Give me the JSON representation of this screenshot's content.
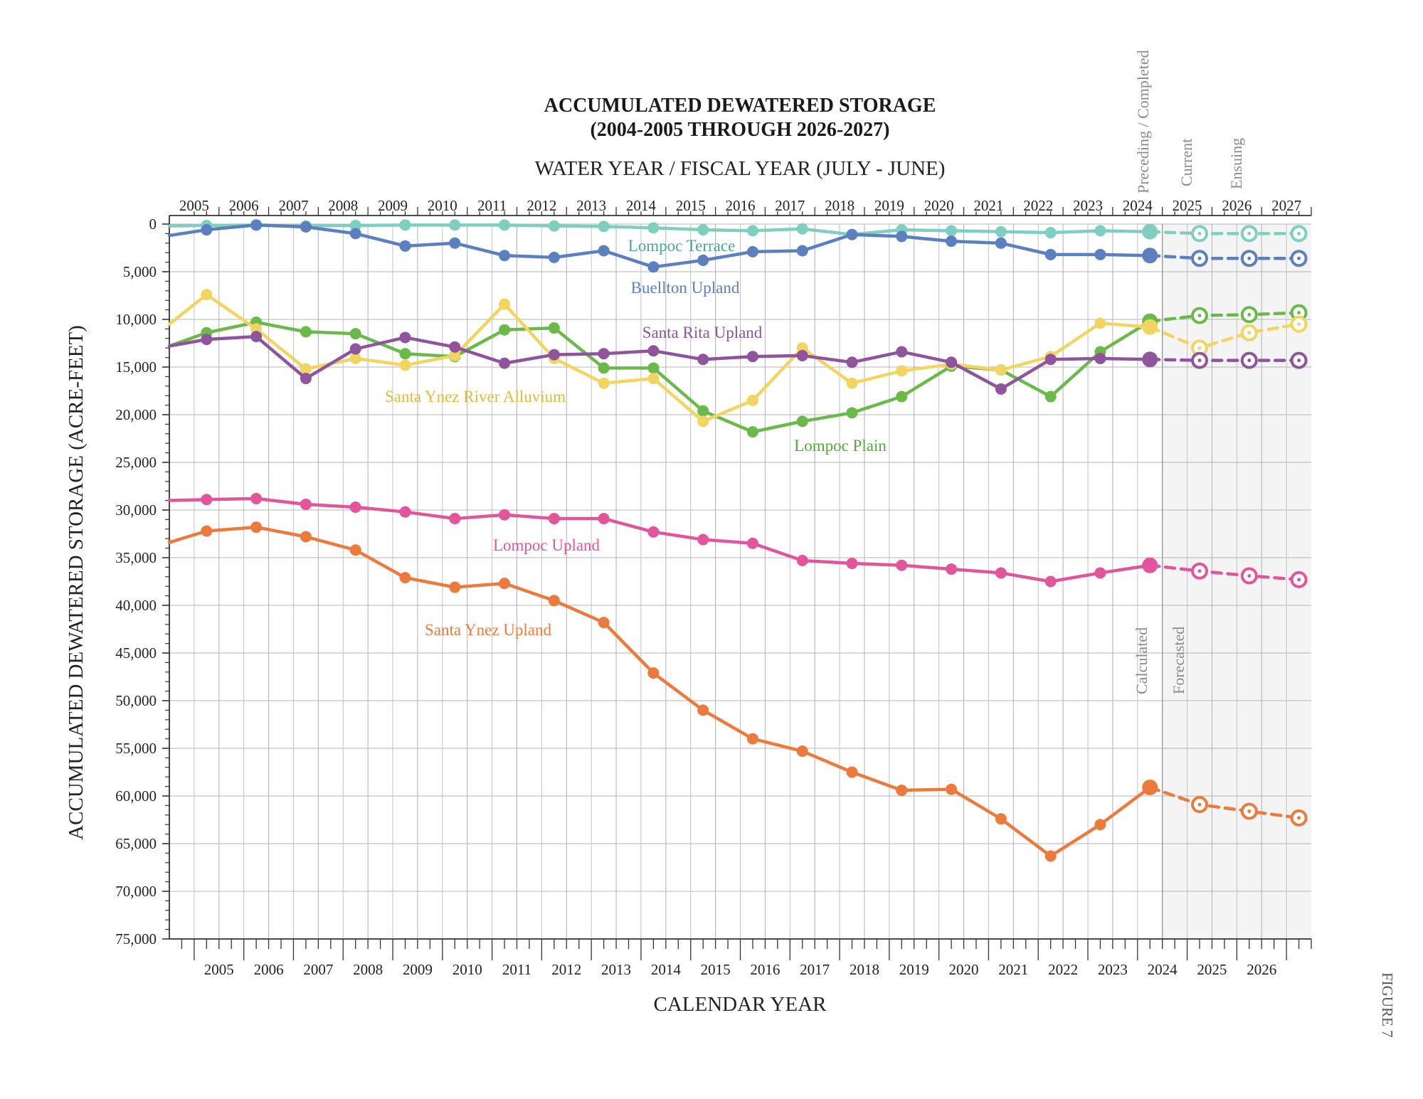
{
  "chart_data": {
    "type": "line",
    "title": "ACCUMULATED DEWATERED STORAGE",
    "subtitle": "(2004-2005 THROUGH 2026-2027)",
    "top_axis_title": "WATER YEAR / FISCAL YEAR (JULY - JUNE)",
    "xlabel": "CALENDAR YEAR",
    "ylabel": "ACCUMULATED DEWATERED STORAGE (ACRE-FEET)",
    "figure_label": "FIGURE 7",
    "ylim": [
      0,
      75000
    ],
    "y_ticks": [
      "0",
      "5,000",
      "10,000",
      "15,000",
      "20,000",
      "25,000",
      "30,000",
      "35,000",
      "40,000",
      "45,000",
      "50,000",
      "55,000",
      "60,000",
      "65,000",
      "70,000",
      "75,000"
    ],
    "water_years": [
      "2005",
      "2006",
      "2007",
      "2008",
      "2009",
      "2010",
      "2011",
      "2012",
      "2013",
      "2014",
      "2015",
      "2016",
      "2017",
      "2018",
      "2019",
      "2020",
      "2021",
      "2022",
      "2023",
      "2024",
      "2025",
      "2026",
      "2027"
    ],
    "calendar_years": [
      "2005",
      "2006",
      "2007",
      "2008",
      "2009",
      "2010",
      "2011",
      "2012",
      "2013",
      "2014",
      "2015",
      "2016",
      "2017",
      "2018",
      "2019",
      "2020",
      "2021",
      "2022",
      "2023",
      "2024",
      "2025",
      "2026"
    ],
    "period_labels": {
      "preceding": "Preceding / Completed",
      "current": "Current",
      "ensuing": "Ensuing",
      "calculated": "Calculated",
      "forecasted": "Forecasted"
    },
    "x_start": 2004.5,
    "x_end": 2027.5,
    "calculated_end": 2024.5,
    "series": [
      {
        "name": "Lompoc Terrace",
        "color": "#7fcfc0",
        "x": [
          2004.5,
          2005.25,
          2006.25,
          2007.25,
          2008.25,
          2009.25,
          2010.25,
          2011.25,
          2012.25,
          2013.25,
          2014.25,
          2015.25,
          2016.25,
          2017.25,
          2018.25,
          2019.25,
          2020.25,
          2021.25,
          2022.25,
          2023.25,
          2024.25
        ],
        "values": [
          200,
          150,
          100,
          200,
          150,
          100,
          100,
          100,
          200,
          250,
          400,
          600,
          700,
          500,
          1100,
          600,
          700,
          800,
          900,
          700,
          800
        ],
        "forecast_x": [
          2025.25,
          2026.25,
          2027.25
        ],
        "forecast": [
          1000,
          1000,
          1000
        ]
      },
      {
        "name": "Buellton Upland",
        "color": "#5b7fbf",
        "x": [
          2004.5,
          2005.25,
          2006.25,
          2007.25,
          2008.25,
          2009.25,
          2010.25,
          2011.25,
          2012.25,
          2013.25,
          2014.25,
          2015.25,
          2016.25,
          2017.25,
          2018.25,
          2019.25,
          2020.25,
          2021.25,
          2022.25,
          2023.25,
          2024.25
        ],
        "values": [
          1200,
          600,
          100,
          300,
          1000,
          2300,
          2000,
          3300,
          3500,
          2800,
          4500,
          3800,
          2900,
          2800,
          1100,
          1300,
          1800,
          2000,
          3200,
          3200,
          3300
        ],
        "forecast_x": [
          2025.25,
          2026.25,
          2027.25
        ],
        "forecast": [
          3600,
          3600,
          3600
        ]
      },
      {
        "name": "Lompoc Plain",
        "color": "#6ab94a",
        "x": [
          2004.5,
          2005.25,
          2006.25,
          2007.25,
          2008.25,
          2009.25,
          2010.25,
          2011.25,
          2012.25,
          2013.25,
          2014.25,
          2015.25,
          2016.25,
          2017.25,
          2018.25,
          2019.25,
          2020.25,
          2021.25,
          2022.25,
          2023.25,
          2024.25
        ],
        "values": [
          12800,
          11400,
          10300,
          11300,
          11500,
          13600,
          13900,
          11100,
          10900,
          15100,
          15100,
          19600,
          21800,
          20700,
          19800,
          18100,
          14900,
          15300,
          18100,
          13400,
          10200
        ],
        "forecast_x": [
          2025.25,
          2026.25,
          2027.25
        ],
        "forecast": [
          9600,
          9500,
          9300
        ]
      },
      {
        "name": "Santa Ynez River Alluvium",
        "color": "#f2d560",
        "x": [
          2004.5,
          2005.25,
          2006.25,
          2007.25,
          2008.25,
          2009.25,
          2010.25,
          2011.25,
          2012.25,
          2013.25,
          2014.25,
          2015.25,
          2016.25,
          2017.25,
          2018.25,
          2019.25,
          2020.25,
          2021.25,
          2022.25,
          2023.25,
          2024.25
        ],
        "values": [
          10500,
          7400,
          11000,
          15200,
          14100,
          14800,
          13800,
          8400,
          14100,
          16700,
          16200,
          20700,
          18500,
          13000,
          16700,
          15400,
          14700,
          15300,
          13900,
          10400,
          10800
        ],
        "forecast_x": [
          2025.25,
          2026.25,
          2027.25
        ],
        "forecast": [
          13000,
          11400,
          10500
        ]
      },
      {
        "name": "Santa Rita Upland",
        "color": "#8e549c",
        "x": [
          2004.5,
          2005.25,
          2006.25,
          2007.25,
          2008.25,
          2009.25,
          2010.25,
          2011.25,
          2012.25,
          2013.25,
          2014.25,
          2015.25,
          2016.25,
          2017.25,
          2018.25,
          2019.25,
          2020.25,
          2021.25,
          2022.25,
          2023.25,
          2024.25
        ],
        "values": [
          12800,
          12100,
          11800,
          16200,
          13100,
          11900,
          12900,
          14600,
          13700,
          13600,
          13300,
          14200,
          13900,
          13800,
          14500,
          13400,
          14500,
          17300,
          14200,
          14100,
          14200
        ],
        "forecast_x": [
          2025.25,
          2026.25,
          2027.25
        ],
        "forecast": [
          14300,
          14300,
          14300
        ]
      },
      {
        "name": "Lompoc Upland",
        "color": "#e2559a",
        "x": [
          2004.5,
          2005.25,
          2006.25,
          2007.25,
          2008.25,
          2009.25,
          2010.25,
          2011.25,
          2012.25,
          2013.25,
          2014.25,
          2015.25,
          2016.25,
          2017.25,
          2018.25,
          2019.25,
          2020.25,
          2021.25,
          2022.25,
          2023.25,
          2024.25
        ],
        "values": [
          29000,
          28900,
          28800,
          29400,
          29700,
          30200,
          30900,
          30500,
          30900,
          30900,
          32300,
          33100,
          33500,
          35300,
          35600,
          35800,
          36200,
          36600,
          37500,
          36600,
          35800
        ],
        "forecast_x": [
          2025.25,
          2026.25,
          2027.25
        ],
        "forecast": [
          36400,
          36900,
          37300
        ]
      },
      {
        "name": "Santa Ynez Upland",
        "color": "#ec7a3c",
        "x": [
          2004.5,
          2005.25,
          2006.25,
          2007.25,
          2008.25,
          2009.25,
          2010.25,
          2011.25,
          2012.25,
          2013.25,
          2014.25,
          2015.25,
          2016.25,
          2017.25,
          2018.25,
          2019.25,
          2020.25,
          2021.25,
          2022.25,
          2023.25,
          2024.25
        ],
        "values": [
          33400,
          32200,
          31800,
          32800,
          34200,
          37100,
          38100,
          37700,
          39500,
          41800,
          47100,
          51000,
          54000,
          55300,
          57500,
          59400,
          59300,
          62400,
          66300,
          63000,
          59100
        ],
        "forecast_x": [
          2025.25,
          2026.25,
          2027.25
        ],
        "forecast": [
          60900,
          61600,
          62300
        ]
      }
    ]
  }
}
